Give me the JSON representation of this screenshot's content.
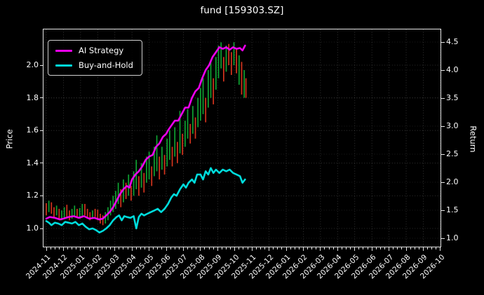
{
  "window": {
    "title": "fund [159303.SZ]"
  },
  "colors": {
    "background": "#000000",
    "ai_strategy": "#ee00ee",
    "buy_and_hold": "#00dcdc",
    "candle_up": "#0fa332",
    "candle_down": "#d5341d",
    "axis": "#e6e6e6",
    "grid": "#7a7a7a"
  },
  "legend": {
    "items": [
      {
        "label": "AI Strategy",
        "color": "#ee00ee"
      },
      {
        "label": "Buy-and-Hold",
        "color": "#00dcdc"
      }
    ]
  },
  "chart_data": {
    "type": "line",
    "title": "fund [159303.SZ]",
    "grid": true,
    "legend_position": "upper left",
    "left_axis": {
      "label": "Price",
      "ticks": [
        1.0,
        1.2,
        1.4,
        1.6,
        1.8,
        2.0
      ],
      "range": [
        0.89,
        2.22
      ]
    },
    "right_axis": {
      "label": "Return",
      "ticks": [
        1.0,
        1.5,
        2.0,
        2.5,
        3.0,
        3.5,
        4.0,
        4.5
      ],
      "range": [
        0.85,
        4.73
      ]
    },
    "x_axis": {
      "months_from": "2024-11",
      "tick_labels": [
        "2024-11",
        "2024-12",
        "2025-01",
        "2025-02",
        "2025-03",
        "2025-04",
        "2025-05",
        "2025-06",
        "2025-07",
        "2025-08",
        "2025-09",
        "2025-10",
        "2025-11",
        "2025-12",
        "2026-01",
        "2026-02",
        "2026-03",
        "2026-04",
        "2026-05",
        "2026-06",
        "2026-07",
        "2026-08",
        "2026-09",
        "2026-10"
      ]
    },
    "series": [
      {
        "name": "AI Strategy",
        "axis": "left",
        "color": "#ee00ee",
        "points": [
          [
            0,
            1.06
          ],
          [
            0.2,
            1.07
          ],
          [
            0.5,
            1.065
          ],
          [
            0.8,
            1.055
          ],
          [
            1.0,
            1.06
          ],
          [
            1.3,
            1.07
          ],
          [
            1.6,
            1.075
          ],
          [
            1.9,
            1.065
          ],
          [
            2.2,
            1.075
          ],
          [
            2.5,
            1.06
          ],
          [
            2.8,
            1.065
          ],
          [
            3.1,
            1.055
          ],
          [
            3.3,
            1.06
          ],
          [
            3.5,
            1.08
          ],
          [
            3.7,
            1.1
          ],
          [
            3.9,
            1.13
          ],
          [
            4.1,
            1.17
          ],
          [
            4.3,
            1.21
          ],
          [
            4.5,
            1.24
          ],
          [
            4.7,
            1.26
          ],
          [
            4.85,
            1.25
          ],
          [
            5.0,
            1.3
          ],
          [
            5.2,
            1.33
          ],
          [
            5.4,
            1.35
          ],
          [
            5.6,
            1.38
          ],
          [
            5.8,
            1.42
          ],
          [
            6.0,
            1.44
          ],
          [
            6.2,
            1.45
          ],
          [
            6.4,
            1.5
          ],
          [
            6.6,
            1.52
          ],
          [
            6.8,
            1.56
          ],
          [
            7.0,
            1.58
          ],
          [
            7.1,
            1.6
          ],
          [
            7.3,
            1.63
          ],
          [
            7.5,
            1.66
          ],
          [
            7.7,
            1.66
          ],
          [
            7.9,
            1.7
          ],
          [
            8.1,
            1.74
          ],
          [
            8.3,
            1.74
          ],
          [
            8.5,
            1.8
          ],
          [
            8.7,
            1.84
          ],
          [
            8.9,
            1.86
          ],
          [
            9.1,
            1.92
          ],
          [
            9.3,
            1.97
          ],
          [
            9.5,
            2.0
          ],
          [
            9.7,
            2.05
          ],
          [
            9.9,
            2.08
          ],
          [
            10.1,
            2.11
          ],
          [
            10.3,
            2.1
          ],
          [
            10.5,
            2.11
          ],
          [
            10.7,
            2.095
          ],
          [
            10.9,
            2.11
          ],
          [
            11.1,
            2.1
          ],
          [
            11.3,
            2.105
          ],
          [
            11.45,
            2.09
          ],
          [
            11.6,
            2.12
          ]
        ]
      },
      {
        "name": "Buy-and-Hold",
        "axis": "left",
        "color": "#00dcdc",
        "points": [
          [
            0,
            1.045
          ],
          [
            0.15,
            1.035
          ],
          [
            0.3,
            1.02
          ],
          [
            0.5,
            1.035
          ],
          [
            0.7,
            1.03
          ],
          [
            0.9,
            1.02
          ],
          [
            1.1,
            1.04
          ],
          [
            1.3,
            1.035
          ],
          [
            1.5,
            1.03
          ],
          [
            1.7,
            1.04
          ],
          [
            1.9,
            1.02
          ],
          [
            2.1,
            1.03
          ],
          [
            2.3,
            1.01
          ],
          [
            2.5,
            0.995
          ],
          [
            2.7,
            1.0
          ],
          [
            2.9,
            0.99
          ],
          [
            3.1,
            0.975
          ],
          [
            3.3,
            0.985
          ],
          [
            3.5,
            1.0
          ],
          [
            3.7,
            1.02
          ],
          [
            3.9,
            1.05
          ],
          [
            4.1,
            1.07
          ],
          [
            4.25,
            1.08
          ],
          [
            4.4,
            1.05
          ],
          [
            4.55,
            1.075
          ],
          [
            4.7,
            1.07
          ],
          [
            4.9,
            1.065
          ],
          [
            5.1,
            1.075
          ],
          [
            5.25,
            1.0
          ],
          [
            5.4,
            1.07
          ],
          [
            5.55,
            1.09
          ],
          [
            5.7,
            1.08
          ],
          [
            5.9,
            1.09
          ],
          [
            6.1,
            1.1
          ],
          [
            6.3,
            1.11
          ],
          [
            6.5,
            1.12
          ],
          [
            6.7,
            1.1
          ],
          [
            6.9,
            1.12
          ],
          [
            7.1,
            1.15
          ],
          [
            7.3,
            1.19
          ],
          [
            7.45,
            1.21
          ],
          [
            7.6,
            1.2
          ],
          [
            7.8,
            1.24
          ],
          [
            8.0,
            1.27
          ],
          [
            8.15,
            1.25
          ],
          [
            8.3,
            1.28
          ],
          [
            8.5,
            1.3
          ],
          [
            8.65,
            1.28
          ],
          [
            8.8,
            1.33
          ],
          [
            9.0,
            1.33
          ],
          [
            9.15,
            1.3
          ],
          [
            9.3,
            1.35
          ],
          [
            9.45,
            1.33
          ],
          [
            9.6,
            1.37
          ],
          [
            9.75,
            1.34
          ],
          [
            9.9,
            1.36
          ],
          [
            10.1,
            1.34
          ],
          [
            10.3,
            1.36
          ],
          [
            10.5,
            1.35
          ],
          [
            10.7,
            1.36
          ],
          [
            10.9,
            1.34
          ],
          [
            11.1,
            1.33
          ],
          [
            11.3,
            1.32
          ],
          [
            11.45,
            1.28
          ],
          [
            11.6,
            1.3
          ]
        ]
      }
    ],
    "candles": {
      "up_color": "#0fa332",
      "down_color": "#d5341d",
      "bars": [
        [
          0.0,
          1.08,
          1.155,
          "r"
        ],
        [
          0.15,
          1.1,
          1.17,
          "g"
        ],
        [
          0.3,
          1.09,
          1.16,
          "r"
        ],
        [
          0.45,
          1.07,
          1.13,
          "r"
        ],
        [
          0.6,
          1.08,
          1.14,
          "g"
        ],
        [
          0.75,
          1.06,
          1.12,
          "r"
        ],
        [
          0.9,
          1.05,
          1.11,
          "g"
        ],
        [
          1.05,
          1.06,
          1.13,
          "g"
        ],
        [
          1.2,
          1.07,
          1.145,
          "r"
        ],
        [
          1.35,
          1.05,
          1.11,
          "r"
        ],
        [
          1.5,
          1.06,
          1.12,
          "g"
        ],
        [
          1.65,
          1.07,
          1.14,
          "g"
        ],
        [
          1.8,
          1.065,
          1.12,
          "r"
        ],
        [
          1.95,
          1.06,
          1.125,
          "g"
        ],
        [
          2.1,
          1.07,
          1.15,
          "g"
        ],
        [
          2.25,
          1.08,
          1.15,
          "r"
        ],
        [
          2.4,
          1.06,
          1.12,
          "r"
        ],
        [
          2.55,
          1.05,
          1.1,
          "r"
        ],
        [
          2.7,
          1.06,
          1.11,
          "g"
        ],
        [
          2.85,
          1.07,
          1.12,
          "r"
        ],
        [
          3.0,
          1.05,
          1.115,
          "r"
        ],
        [
          3.15,
          1.03,
          1.09,
          "r"
        ],
        [
          3.3,
          1.02,
          1.08,
          "r"
        ],
        [
          3.45,
          1.03,
          1.1,
          "g"
        ],
        [
          3.6,
          1.05,
          1.13,
          "g"
        ],
        [
          3.75,
          1.08,
          1.17,
          "g"
        ],
        [
          3.9,
          1.1,
          1.2,
          "g"
        ],
        [
          4.05,
          1.12,
          1.23,
          "g"
        ],
        [
          4.2,
          1.15,
          1.28,
          "g"
        ],
        [
          4.35,
          1.13,
          1.24,
          "r"
        ],
        [
          4.5,
          1.16,
          1.3,
          "g"
        ],
        [
          4.65,
          1.18,
          1.28,
          "r"
        ],
        [
          4.8,
          1.2,
          1.33,
          "g"
        ],
        [
          4.95,
          1.17,
          1.26,
          "r"
        ],
        [
          5.1,
          1.2,
          1.35,
          "g"
        ],
        [
          5.25,
          1.24,
          1.42,
          "g"
        ],
        [
          5.4,
          1.2,
          1.32,
          "r"
        ],
        [
          5.55,
          1.25,
          1.4,
          "g"
        ],
        [
          5.7,
          1.22,
          1.34,
          "r"
        ],
        [
          5.85,
          1.28,
          1.44,
          "g"
        ],
        [
          6.0,
          1.3,
          1.47,
          "g"
        ],
        [
          6.15,
          1.26,
          1.38,
          "r"
        ],
        [
          6.3,
          1.32,
          1.5,
          "g"
        ],
        [
          6.45,
          1.35,
          1.57,
          "g"
        ],
        [
          6.6,
          1.3,
          1.44,
          "r"
        ],
        [
          6.75,
          1.36,
          1.5,
          "g"
        ],
        [
          6.9,
          1.33,
          1.45,
          "r"
        ],
        [
          7.05,
          1.38,
          1.55,
          "g"
        ],
        [
          7.2,
          1.42,
          1.6,
          "g"
        ],
        [
          7.35,
          1.38,
          1.5,
          "r"
        ],
        [
          7.5,
          1.44,
          1.62,
          "g"
        ],
        [
          7.65,
          1.4,
          1.53,
          "r"
        ],
        [
          7.8,
          1.46,
          1.72,
          "g"
        ],
        [
          7.95,
          1.45,
          1.58,
          "r"
        ],
        [
          8.1,
          1.5,
          1.66,
          "g"
        ],
        [
          8.25,
          1.55,
          1.73,
          "g"
        ],
        [
          8.4,
          1.52,
          1.64,
          "r"
        ],
        [
          8.55,
          1.58,
          1.75,
          "g"
        ],
        [
          8.7,
          1.55,
          1.68,
          "r"
        ],
        [
          8.85,
          1.62,
          1.8,
          "g"
        ],
        [
          9.0,
          1.66,
          1.86,
          "g"
        ],
        [
          9.15,
          1.7,
          1.92,
          "g"
        ],
        [
          9.3,
          1.65,
          1.8,
          "r"
        ],
        [
          9.45,
          1.74,
          1.97,
          "g"
        ],
        [
          9.6,
          1.8,
          2.02,
          "g"
        ],
        [
          9.75,
          1.76,
          1.92,
          "r"
        ],
        [
          9.9,
          1.85,
          2.05,
          "g"
        ],
        [
          10.05,
          1.92,
          2.12,
          "g"
        ],
        [
          10.2,
          1.98,
          2.14,
          "g"
        ],
        [
          10.35,
          1.9,
          2.05,
          "r"
        ],
        [
          10.5,
          1.96,
          2.12,
          "g"
        ],
        [
          10.65,
          2.0,
          2.13,
          "r"
        ],
        [
          10.8,
          1.94,
          2.08,
          "r"
        ],
        [
          10.95,
          2.0,
          2.14,
          "g"
        ],
        [
          11.1,
          1.95,
          2.1,
          "r"
        ],
        [
          11.25,
          1.88,
          2.06,
          "g"
        ],
        [
          11.4,
          1.82,
          2.02,
          "r"
        ],
        [
          11.55,
          1.8,
          1.97,
          "g"
        ],
        [
          11.65,
          1.8,
          1.92,
          "r"
        ]
      ]
    }
  }
}
